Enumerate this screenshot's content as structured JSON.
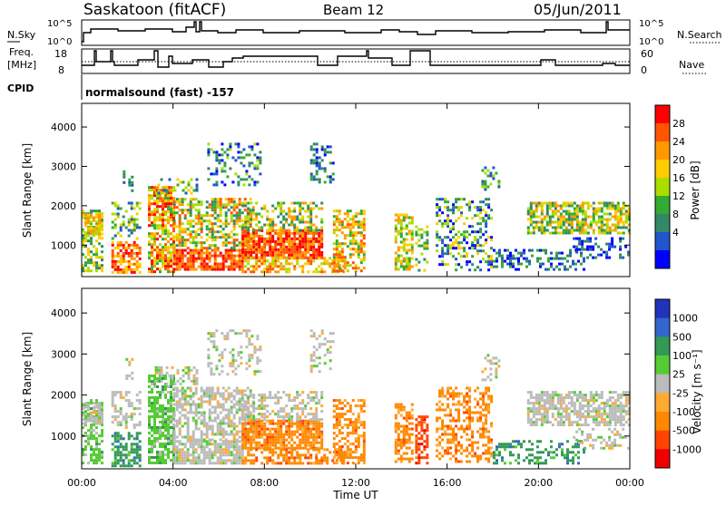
{
  "header": {
    "station": "Saskatoon (fitACF)",
    "beam": "Beam 12",
    "date": "05/Jun/2011"
  },
  "strip": {
    "nsky_label": "N.Sky",
    "nsky_ticks": [
      "10^5",
      "10^0"
    ],
    "nsearch_label": "N.Search",
    "nsearch_ticks": [
      "10^5",
      "10^0"
    ],
    "freq_label": "Freq.",
    "freq_unit": "[MHz]",
    "freq_ticks": [
      "18",
      "8"
    ],
    "nave_label": "Nave",
    "nave_ticks": [
      "60",
      "0"
    ],
    "cpid_label": "CPID",
    "cpid_text": "normalsound (fast) -157"
  },
  "chart_data": [
    {
      "type": "heatmap",
      "name": "power",
      "xlabel": "",
      "ylabel": "Slant Range [km]",
      "x_ticks": [
        "00:00",
        "04:00",
        "08:00",
        "12:00",
        "16:00",
        "20:00",
        "00:00"
      ],
      "y_ticks": [
        "1000",
        "2000",
        "3000",
        "4000"
      ],
      "ylim": [
        200,
        4600
      ],
      "xlim_hours": [
        0,
        24
      ],
      "colorbar_label": "Power [dB]",
      "colorbar_ticks": [
        "28",
        "24",
        "20",
        "16",
        "12",
        "8",
        "4"
      ],
      "colorbar_colors": [
        "#ff0000",
        "#ff5500",
        "#ff9900",
        "#ffcc00",
        "#aadd00",
        "#33aa33",
        "#338866",
        "#2255cc",
        "#0000ff"
      ]
    },
    {
      "type": "heatmap",
      "name": "velocity",
      "xlabel": "Time UT",
      "ylabel": "Slant Range [km]",
      "x_ticks": [
        "00:00",
        "04:00",
        "08:00",
        "12:00",
        "16:00",
        "20:00",
        "00:00"
      ],
      "y_ticks": [
        "1000",
        "2000",
        "3000",
        "4000"
      ],
      "ylim": [
        200,
        4600
      ],
      "xlim_hours": [
        0,
        24
      ],
      "colorbar_label": "Velocity [m s⁻¹]",
      "colorbar_ticks": [
        "1000",
        "500",
        "100",
        "25",
        "-25",
        "-100",
        "-500",
        "-1000"
      ],
      "colorbar_colors": [
        "#2233bb",
        "#3366cc",
        "#339955",
        "#55cc33",
        "#bbbbbb",
        "#ffaa33",
        "#ff8800",
        "#ff4400",
        "#ee0000"
      ]
    }
  ]
}
